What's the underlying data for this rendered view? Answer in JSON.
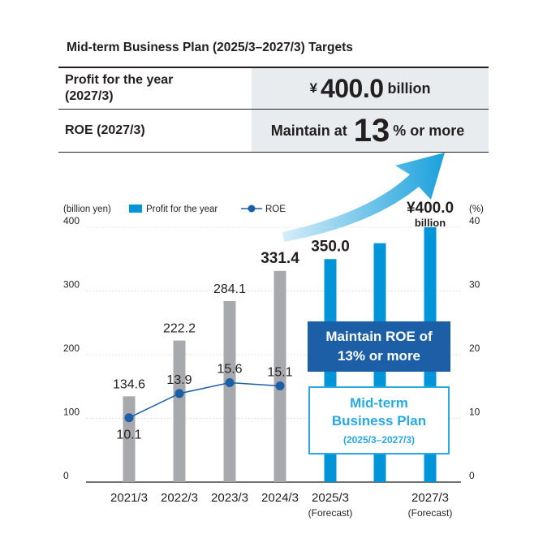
{
  "heading": "Mid-term Business Plan (2025/3–2027/3) Targets",
  "targets": {
    "profit": {
      "label_line1": "Profit for the year",
      "label_line2": "(2027/3)",
      "currency": "¥",
      "value": "400.0",
      "unit": "billion"
    },
    "roe": {
      "label": "ROE (2027/3)",
      "prefix": "Maintain at",
      "value": "13",
      "suffix": "% or more"
    }
  },
  "callouts": {
    "maintain_roe_line1": "Maintain ROE of",
    "maintain_roe_line2": "13% or more",
    "plan_line1": "Mid-term",
    "plan_line2": "Business Plan",
    "plan_period": "(2025/3–2027/3)",
    "target_line1": "¥400.0",
    "target_line2": "billion"
  },
  "colors": {
    "actual_bar": "#a7a9ac",
    "plan_bar": "#0095d9",
    "roe_line": "#1d5fa6",
    "arrow": "#1aa0dc"
  },
  "chart_data": {
    "type": "bar",
    "left_axis_label": "(billion yen)",
    "right_axis_label": "(%)",
    "ylim": [
      0,
      400
    ],
    "ylim_right": [
      0,
      40
    ],
    "left_ticks": [
      "0",
      "100",
      "200",
      "300",
      "400"
    ],
    "right_ticks": [
      "0",
      "10",
      "20",
      "30",
      "40"
    ],
    "legend": {
      "bar": "Profit for the year",
      "line": "ROE",
      "placement": "top-left"
    },
    "x_labels": [
      "2021/3",
      "2022/3",
      "2023/3",
      "2024/3",
      "2025/3",
      "",
      "2027/3"
    ],
    "x_sublabels": [
      "",
      "",
      "",
      "",
      "(Forecast)",
      "",
      "(Forecast)"
    ],
    "profit_values": [
      134.6,
      222.2,
      284.1,
      331.4,
      350.0,
      375.0,
      400.0
    ],
    "profit_labels": [
      "134.6",
      "222.2",
      "284.1",
      "331.4",
      "350.0",
      "",
      ""
    ],
    "bar_kind": [
      "actual",
      "actual",
      "actual",
      "actual",
      "plan",
      "plan",
      "plan"
    ],
    "roe_values": [
      10.1,
      13.9,
      15.6,
      15.1
    ],
    "roe_labels": [
      "10.1",
      "13.9",
      "15.6",
      "15.1"
    ]
  }
}
